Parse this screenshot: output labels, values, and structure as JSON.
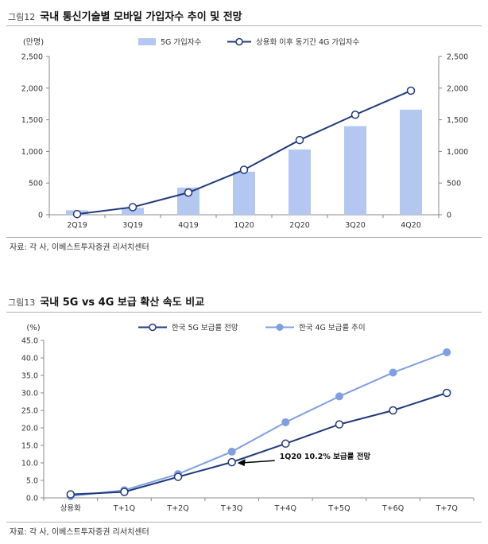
{
  "chart_data": [
    {
      "type": "bar",
      "figure_number": "그림12",
      "title": "국내 통신기술별 모바일 가입자수 추이 및 전망",
      "unit_label": "(만명)",
      "categories": [
        "2Q19",
        "3Q19",
        "4Q19",
        "1Q20",
        "2Q20",
        "3Q20",
        "4Q20"
      ],
      "series": [
        {
          "name": "5G 가입자수",
          "kind": "bar",
          "color": "#b4c7f0",
          "values": [
            70,
            110,
            430,
            680,
            1030,
            1400,
            1660
          ]
        },
        {
          "name": "상용화 이후 동기간 4G 가입자수",
          "kind": "line",
          "color": "#1f3a7a",
          "values": [
            10,
            120,
            350,
            710,
            1180,
            1580,
            1960
          ]
        }
      ],
      "y_left": {
        "ylim": [
          0,
          2500
        ],
        "ticks": [
          "2,500",
          "2,000",
          "1,500",
          "1,000",
          "500",
          "0"
        ],
        "tick_values": [
          2500,
          2000,
          1500,
          1000,
          500,
          0
        ]
      },
      "y_right": {
        "ylim": [
          0,
          2500
        ],
        "ticks": [
          "2,500",
          "2,000",
          "1,500",
          "1,000",
          "500",
          "0"
        ],
        "tick_values": [
          2500,
          2000,
          1500,
          1000,
          500,
          0
        ]
      },
      "legend_position": "top",
      "grid": false,
      "source": "자료: 각 사, 이베스트투자증권 리서치센터"
    },
    {
      "type": "line",
      "figure_number": "그림13",
      "title": "국내 5G vs 4G 보급 확산 속도 비교",
      "unit_label": "(%)",
      "categories": [
        "상용화",
        "T+1Q",
        "T+2Q",
        "T+3Q",
        "T+4Q",
        "T+5Q",
        "T+6Q",
        "T+7Q"
      ],
      "series": [
        {
          "name": "한국 5G 보급률 전망",
          "color": "#1f3a7a",
          "marker": "hollow",
          "values": [
            1.0,
            1.7,
            6.0,
            10.2,
            15.5,
            21.0,
            25.0,
            30.0
          ]
        },
        {
          "name": "한국 4G 보급률 추이",
          "color": "#7f9fe3",
          "marker": "filled",
          "values": [
            0.5,
            2.2,
            6.8,
            13.2,
            21.6,
            29.0,
            35.8,
            41.6
          ]
        }
      ],
      "ylim": [
        0,
        45
      ],
      "y_ticks": [
        "45.0",
        "40.0",
        "35.0",
        "30.0",
        "25.0",
        "20.0",
        "15.0",
        "10.0",
        "5.0",
        "0.0"
      ],
      "y_tick_values": [
        45,
        40,
        35,
        30,
        25,
        20,
        15,
        10,
        5,
        0
      ],
      "annotation": {
        "text": "1Q20 10.2% 보급률 전망",
        "series_index": 0,
        "point_index": 3
      },
      "legend_position": "top",
      "grid": false,
      "source": "자료: 각 사, 이베스트투자증권 리서치센터"
    }
  ]
}
